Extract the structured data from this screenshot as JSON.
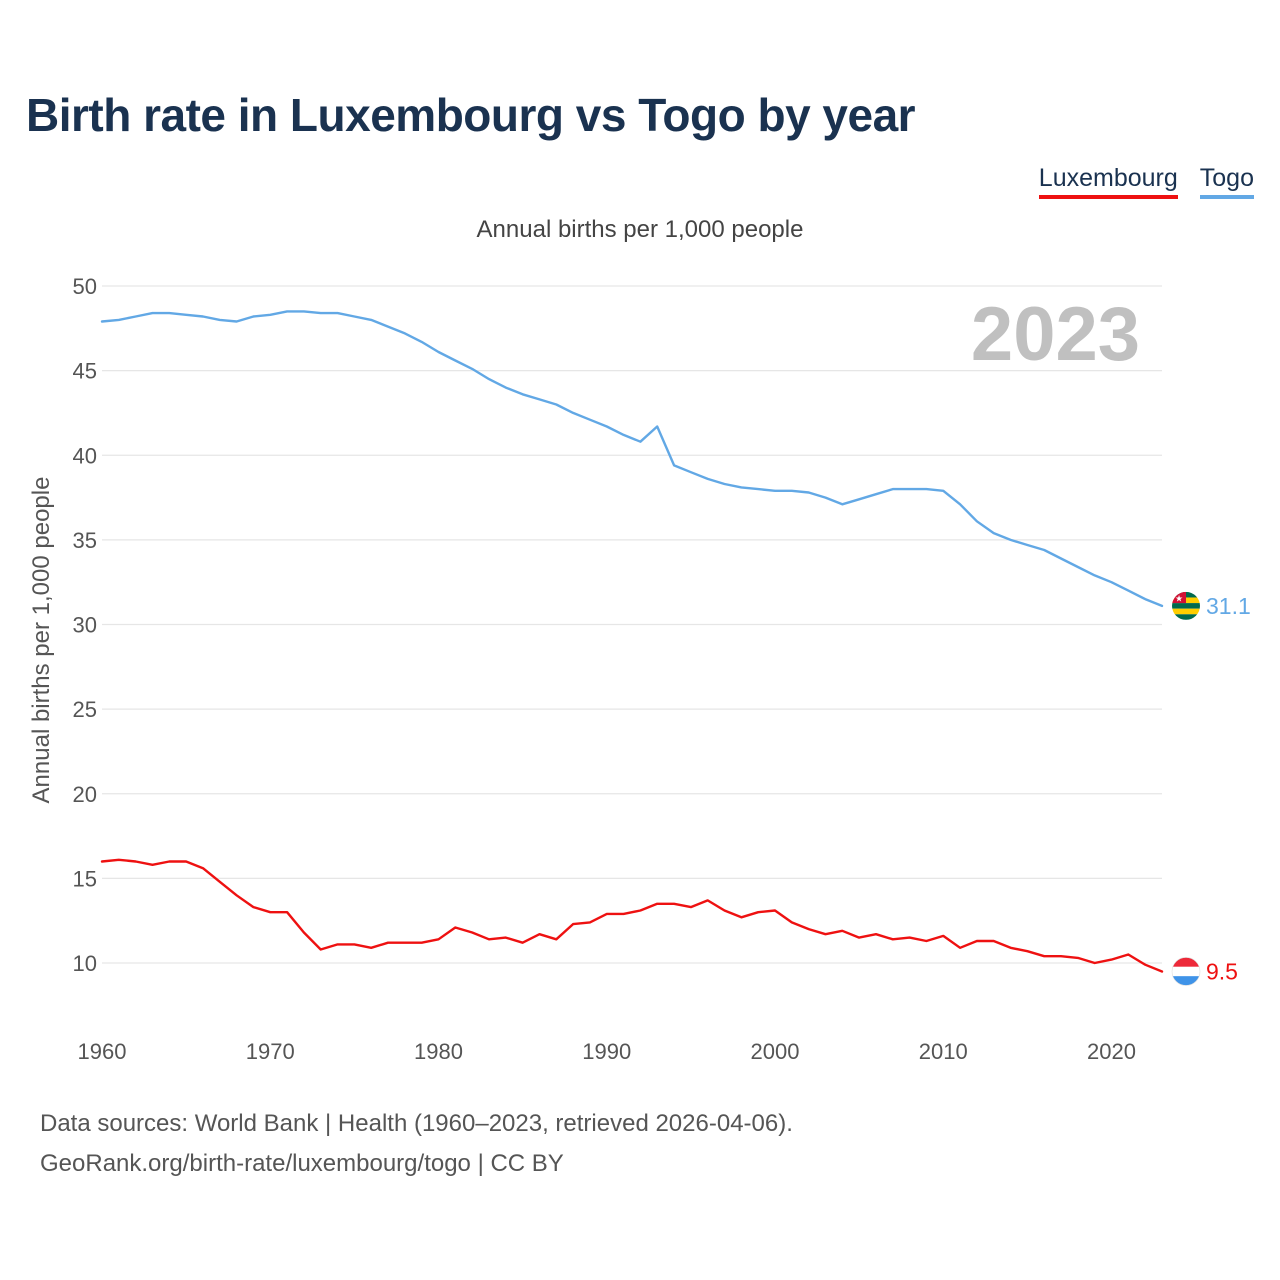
{
  "title": "Birth rate in Luxembourg vs Togo by year",
  "legend": [
    {
      "label": "Luxembourg",
      "color": "#ee1111"
    },
    {
      "label": "Togo",
      "color": "#62a8e5"
    }
  ],
  "subtitle": "Annual births per 1,000 people",
  "year_watermark": "2023",
  "end_labels": {
    "togo": "31.1",
    "luxembourg": "9.5"
  },
  "flags": {
    "togo": "togo-flag-icon",
    "luxembourg": "luxembourg-flag-icon"
  },
  "source": {
    "line1": "Data sources: World Bank | Health (1960–2023, retrieved 2026-04-06).",
    "line2": "GeoRank.org/birth-rate/luxembourg/togo | CC BY"
  },
  "chart_data": {
    "type": "line",
    "title": "Birth rate in Luxembourg vs Togo by year",
    "xlabel": "",
    "ylabel": "Annual births per 1,000 people",
    "xlim": [
      1960,
      2023
    ],
    "ylim": [
      7,
      50
    ],
    "yticks": [
      10,
      15,
      20,
      25,
      30,
      35,
      40,
      45,
      50
    ],
    "xticks": [
      1960,
      1970,
      1980,
      1990,
      2000,
      2010,
      2020
    ],
    "grid": true,
    "legend_position": "top-right",
    "x": [
      1960,
      1961,
      1962,
      1963,
      1964,
      1965,
      1966,
      1967,
      1968,
      1969,
      1970,
      1971,
      1972,
      1973,
      1974,
      1975,
      1976,
      1977,
      1978,
      1979,
      1980,
      1981,
      1982,
      1983,
      1984,
      1985,
      1986,
      1987,
      1988,
      1989,
      1990,
      1991,
      1992,
      1993,
      1994,
      1995,
      1996,
      1997,
      1998,
      1999,
      2000,
      2001,
      2002,
      2003,
      2004,
      2005,
      2006,
      2007,
      2008,
      2009,
      2010,
      2011,
      2012,
      2013,
      2014,
      2015,
      2016,
      2017,
      2018,
      2019,
      2020,
      2021,
      2022,
      2023
    ],
    "series": [
      {
        "name": "Luxembourg",
        "color": "#ee1111",
        "values": [
          16.0,
          16.1,
          16.0,
          15.8,
          16.0,
          16.0,
          15.6,
          14.8,
          14.0,
          13.3,
          13.0,
          13.0,
          11.8,
          10.8,
          11.1,
          11.1,
          10.9,
          11.2,
          11.2,
          11.2,
          11.4,
          12.1,
          11.8,
          11.4,
          11.5,
          11.2,
          11.7,
          11.4,
          12.3,
          12.4,
          12.9,
          12.9,
          13.1,
          13.5,
          13.5,
          13.3,
          13.7,
          13.1,
          12.7,
          13.0,
          13.1,
          12.4,
          12.0,
          11.7,
          11.9,
          11.5,
          11.7,
          11.4,
          11.5,
          11.3,
          11.6,
          10.9,
          11.3,
          11.3,
          10.9,
          10.7,
          10.4,
          10.4,
          10.3,
          10.0,
          10.2,
          10.5,
          9.9,
          9.5
        ]
      },
      {
        "name": "Togo",
        "color": "#62a8e5",
        "values": [
          47.9,
          48.0,
          48.2,
          48.4,
          48.4,
          48.3,
          48.2,
          48.0,
          47.9,
          48.2,
          48.3,
          48.5,
          48.5,
          48.4,
          48.4,
          48.2,
          48.0,
          47.6,
          47.2,
          46.7,
          46.1,
          45.6,
          45.1,
          44.5,
          44.0,
          43.6,
          43.3,
          43.0,
          42.5,
          42.1,
          41.7,
          41.2,
          40.8,
          41.7,
          39.4,
          39.0,
          38.6,
          38.3,
          38.1,
          38.0,
          37.9,
          37.9,
          37.8,
          37.5,
          37.1,
          37.4,
          37.7,
          38.0,
          38.0,
          38.0,
          37.9,
          37.1,
          36.1,
          35.4,
          35.0,
          34.7,
          34.4,
          33.9,
          33.4,
          32.9,
          32.5,
          32.0,
          31.5,
          31.1
        ]
      }
    ]
  }
}
